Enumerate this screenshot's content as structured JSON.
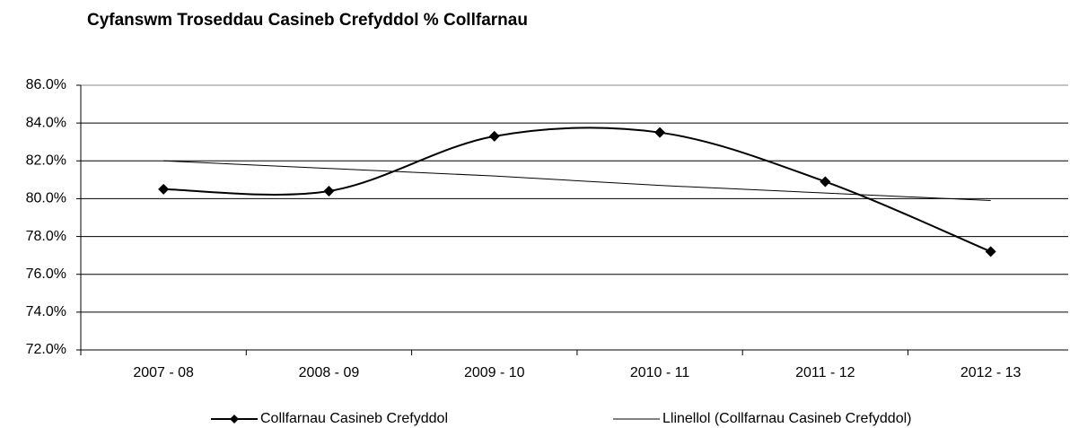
{
  "chart_data": {
    "type": "line",
    "title": "Cyfanswm Troseddau Casineb Crefyddol % Collfarnau",
    "categories": [
      "2007 - 08",
      "2008 - 09",
      "2009 - 10",
      "2010 - 11",
      "2011 - 12",
      "2012 - 13"
    ],
    "series": [
      {
        "name": "Collfarnau Casineb Crefyddol",
        "color": "#000000",
        "values": [
          80.5,
          80.4,
          83.3,
          83.5,
          80.9,
          77.2
        ],
        "smooth": true,
        "marker": "diamond"
      },
      {
        "name": "Llinellol (Collfarnau Casineb Crefyddol)",
        "color": "#000000",
        "values": [
          82.0,
          81.6,
          81.2,
          80.7,
          80.3,
          79.9
        ],
        "smooth": false
      }
    ],
    "ylim": [
      72,
      86
    ],
    "yticks": [
      {
        "value": 72,
        "label": "72.0%"
      },
      {
        "value": 74,
        "label": "74.0%"
      },
      {
        "value": 76,
        "label": "76.0%"
      },
      {
        "value": 78,
        "label": "78.0%"
      },
      {
        "value": 80,
        "label": "80.0%"
      },
      {
        "value": 82,
        "label": "82.0%"
      },
      {
        "value": 84,
        "label": "84.0%"
      },
      {
        "value": 86,
        "label": "86.0%"
      }
    ],
    "grid": true,
    "legend": "bottom"
  }
}
